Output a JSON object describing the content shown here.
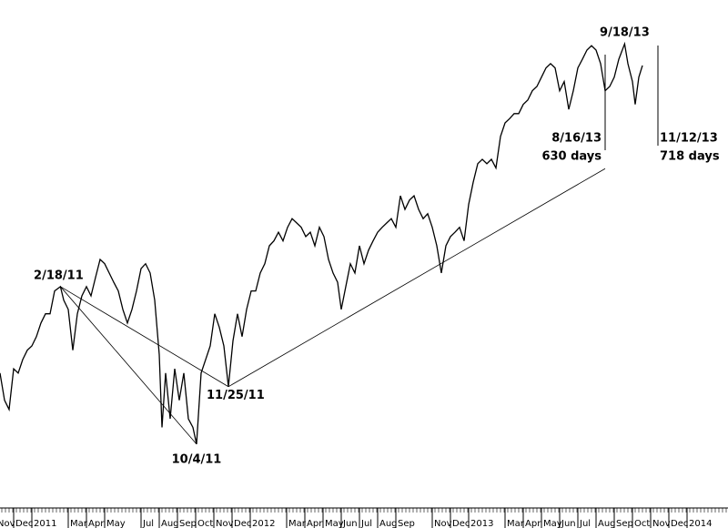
{
  "chart_data": {
    "type": "line",
    "xlim": [
      -1.75,
      38.25
    ],
    "ylim": [
      978,
      1796
    ],
    "xticks": [
      {
        "value": -2,
        "label": "Nov"
      },
      {
        "value": -1,
        "label": "Dec"
      },
      {
        "value": 0,
        "label": "2011"
      },
      {
        "value": 2,
        "label": "Mar"
      },
      {
        "value": 3,
        "label": "Apr"
      },
      {
        "value": 4,
        "label": "May"
      },
      {
        "value": 6,
        "label": "Jul"
      },
      {
        "value": 7,
        "label": "Aug"
      },
      {
        "value": 8,
        "label": "Sep"
      },
      {
        "value": 9,
        "label": "Oct"
      },
      {
        "value": 10,
        "label": "Nov"
      },
      {
        "value": 11,
        "label": "Dec"
      },
      {
        "value": 12,
        "label": "2012"
      },
      {
        "value": 14,
        "label": "Mar"
      },
      {
        "value": 15,
        "label": "Apr"
      },
      {
        "value": 16,
        "label": "May"
      },
      {
        "value": 17,
        "label": "Jun"
      },
      {
        "value": 18,
        "label": "Jul"
      },
      {
        "value": 19,
        "label": "Aug"
      },
      {
        "value": 20,
        "label": "Sep"
      },
      {
        "value": 22,
        "label": "Nov"
      },
      {
        "value": 23,
        "label": "Dec"
      },
      {
        "value": 24,
        "label": "2013"
      },
      {
        "value": 26,
        "label": "Mar"
      },
      {
        "value": 27,
        "label": "Apr"
      },
      {
        "value": 28,
        "label": "May"
      },
      {
        "value": 29,
        "label": "Jun"
      },
      {
        "value": 30,
        "label": "Jul"
      },
      {
        "value": 31,
        "label": "Aug"
      },
      {
        "value": 32,
        "label": "Sep"
      },
      {
        "value": 33,
        "label": "Oct"
      },
      {
        "value": 34,
        "label": "Nov"
      },
      {
        "value": 35,
        "label": "Dec"
      },
      {
        "value": 36,
        "label": "2014"
      }
    ],
    "x": [
      -1.75,
      -1.5,
      -1.25,
      -1.0,
      -0.75,
      -0.5,
      -0.25,
      0,
      0.25,
      0.5,
      0.75,
      1.0,
      1.25,
      1.57,
      1.75,
      2.0,
      2.25,
      2.5,
      2.75,
      3.0,
      3.25,
      3.5,
      3.75,
      4.0,
      4.25,
      4.5,
      4.75,
      5.0,
      5.25,
      5.5,
      5.75,
      6.0,
      6.25,
      6.5,
      6.75,
      7.0,
      7.15,
      7.35,
      7.6,
      7.85,
      8.1,
      8.35,
      8.6,
      8.85,
      9.05,
      9.3,
      9.55,
      9.8,
      10.05,
      10.3,
      10.55,
      10.8,
      11.05,
      11.3,
      11.55,
      11.8,
      12.05,
      12.3,
      12.55,
      12.8,
      13.05,
      13.3,
      13.55,
      13.8,
      14.05,
      14.3,
      14.55,
      14.8,
      15.05,
      15.3,
      15.55,
      15.8,
      16.05,
      16.3,
      16.55,
      16.8,
      17.0,
      17.25,
      17.5,
      17.75,
      18.0,
      18.25,
      18.5,
      18.75,
      19.0,
      19.25,
      19.5,
      19.75,
      20.0,
      20.25,
      20.5,
      20.75,
      21.0,
      21.25,
      21.5,
      21.75,
      22.0,
      22.25,
      22.5,
      22.75,
      23.0,
      23.25,
      23.5,
      23.75,
      24.0,
      24.25,
      24.5,
      24.75,
      25.0,
      25.25,
      25.5,
      25.75,
      26.0,
      26.25,
      26.5,
      26.75,
      27.0,
      27.25,
      27.5,
      27.75,
      28.0,
      28.25,
      28.5,
      28.75,
      29.0,
      29.25,
      29.5,
      29.75,
      30.0,
      30.25,
      30.5,
      30.75,
      31.0,
      31.25,
      31.5,
      31.75,
      32.0,
      32.25,
      32.57,
      32.75,
      33.0,
      33.15,
      33.35,
      33.55
    ],
    "series": [
      {
        "color": "#000000",
        "values": [
          1192,
          1148,
          1133,
          1199,
          1192,
          1214,
          1229,
          1236,
          1251,
          1273,
          1288,
          1288,
          1325,
          1332,
          1310,
          1295,
          1229,
          1288,
          1317,
          1332,
          1317,
          1347,
          1376,
          1369,
          1354,
          1339,
          1325,
          1295,
          1273,
          1295,
          1325,
          1361,
          1369,
          1354,
          1310,
          1222,
          1104,
          1192,
          1118,
          1199,
          1148,
          1192,
          1118,
          1104,
          1077,
          1192,
          1214,
          1236,
          1288,
          1266,
          1236,
          1170,
          1244,
          1288,
          1251,
          1295,
          1325,
          1325,
          1354,
          1369,
          1398,
          1406,
          1420,
          1406,
          1428,
          1442,
          1435,
          1428,
          1413,
          1420,
          1398,
          1428,
          1413,
          1376,
          1354,
          1339,
          1295,
          1332,
          1369,
          1354,
          1398,
          1369,
          1391,
          1406,
          1420,
          1428,
          1435,
          1442,
          1428,
          1479,
          1457,
          1472,
          1479,
          1457,
          1442,
          1450,
          1428,
          1398,
          1354,
          1398,
          1413,
          1420,
          1428,
          1406,
          1465,
          1501,
          1531,
          1538,
          1531,
          1538,
          1524,
          1575,
          1597,
          1604,
          1612,
          1612,
          1627,
          1634,
          1649,
          1656,
          1671,
          1686,
          1693,
          1686,
          1649,
          1664,
          1619,
          1649,
          1686,
          1700,
          1715,
          1722,
          1715,
          1693,
          1649,
          1656,
          1671,
          1700,
          1725,
          1693,
          1664,
          1627,
          1671,
          1690
        ]
      }
    ],
    "annotations": [
      {
        "text": "2/18/11",
        "x": 1.57,
        "y": 1332
      },
      {
        "text": "10/4/11",
        "x": 9.05,
        "y": 1077
      },
      {
        "text": "11/25/11",
        "x": 10.8,
        "y": 1170
      },
      {
        "text": "9/18/13",
        "x": 32.57,
        "y": 1725
      }
    ],
    "trendlines": [
      {
        "x": [
          1.57,
          9.05
        ],
        "y": [
          1332,
          1077
        ]
      },
      {
        "x": [
          1.57,
          10.8
        ],
        "y": [
          1332,
          1170
        ]
      },
      {
        "x": [
          10.8,
          31.5
        ],
        "y": [
          1170,
          1523
        ]
      }
    ],
    "markers": [
      {
        "x": 31.5,
        "label": "8/16/13",
        "note": "630 days"
      },
      {
        "x": 34.4,
        "label": "11/12/13",
        "note": "718 days"
      }
    ]
  }
}
